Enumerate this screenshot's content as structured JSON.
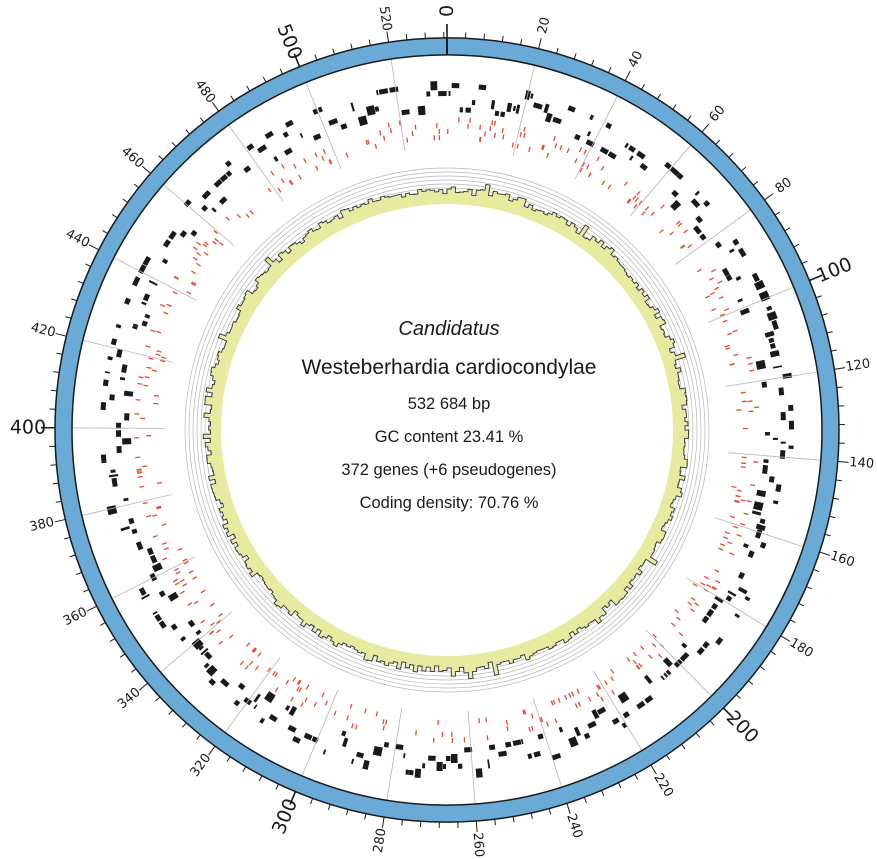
{
  "center": {
    "genus": "Candidatus",
    "species": "Westeberhardia cardiocondylae",
    "genome_size": "532 684 bp",
    "gc_content": "GC content 23.41 %",
    "gene_count": "372 genes (+6 pseudogenes)",
    "coding_density": "Coding density: 70.76 %"
  },
  "scale": {
    "genome_length_kb": 532.684,
    "major_labels": [
      "0",
      "100",
      "200",
      "300",
      "400",
      "500"
    ],
    "minor_labels": [
      "20",
      "40",
      "60",
      "80",
      "120",
      "140",
      "160",
      "180",
      "220",
      "240",
      "260",
      "280",
      "320",
      "340",
      "360",
      "380",
      "420",
      "440",
      "460",
      "480",
      "520"
    ]
  },
  "colors": {
    "backbone": "#6aaad6",
    "genes": "#1a1a1a",
    "pseudogenes_rna": "#e8482c",
    "gc_fill": "#e6eba0",
    "gc_line": "#333333",
    "grid": "#b5b5b5"
  }
}
